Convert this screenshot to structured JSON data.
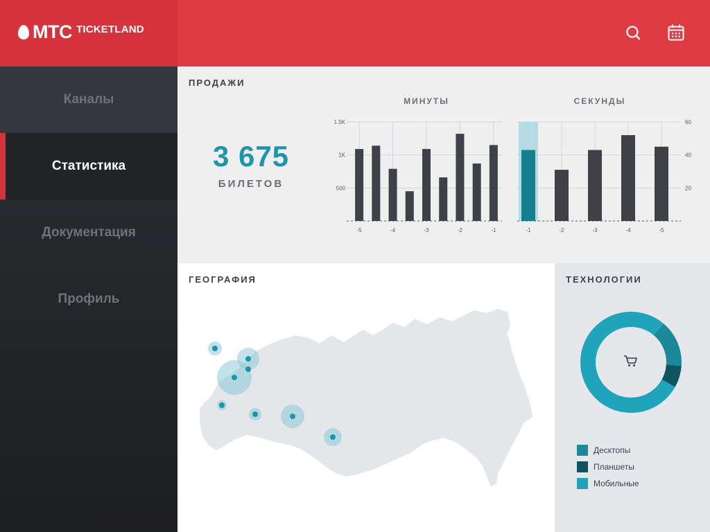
{
  "app": {
    "logo_mts": "МТС",
    "logo_brand": "TICKETLAND"
  },
  "colors": {
    "brand_red": "#d7333c",
    "accent_teal": "#1b97ad",
    "bar_dark": "#3e4148",
    "bar_highlight": "#14808f"
  },
  "sidebar": {
    "items": [
      {
        "label": "Каналы",
        "active": false
      },
      {
        "label": "Статистика",
        "active": true
      },
      {
        "label": "Документация",
        "active": false
      },
      {
        "label": "Профиль",
        "active": false
      }
    ]
  },
  "header": {
    "icons": [
      "search-icon",
      "calendar-icon"
    ]
  },
  "sales": {
    "title": "ПРОДАЖИ",
    "tickets_value": "3 675",
    "tickets_label": "БИЛЕТОВ"
  },
  "geo": {
    "title": "ГЕОГРАФИЯ",
    "markers": [
      {
        "x": 0.0,
        "y": 0.0
      },
      {
        "x": 0.0,
        "y": 0.0
      }
    ]
  },
  "tech": {
    "title": "ТЕХНОЛОГИИ",
    "center_icon": "cart-icon",
    "legend": [
      {
        "label": "Десктопы",
        "color": "#1a8a9b"
      },
      {
        "label": "Планшеты",
        "color": "#0f5461"
      },
      {
        "label": "Мобильные",
        "color": "#1ea4bb"
      }
    ]
  },
  "chart_data": [
    {
      "type": "bar",
      "title": "МИНУТЫ",
      "categories": [
        "-5",
        "",
        "-4",
        "",
        "-3",
        "",
        "-2",
        "",
        "-1"
      ],
      "values": [
        1090,
        1140,
        790,
        450,
        1090,
        660,
        1320,
        870,
        1150
      ],
      "ylim": [
        0,
        1500
      ],
      "yticks": [
        {
          "v": 500,
          "label": "500"
        },
        {
          "v": 1000,
          "label": "1K"
        },
        {
          "v": 1500,
          "label": "1.5K"
        }
      ],
      "grid": true
    },
    {
      "type": "bar",
      "title": "СЕКУНДЫ",
      "categories": [
        "-1",
        "-2",
        "-3",
        "-4",
        "-5"
      ],
      "values": [
        43,
        31,
        43,
        52,
        45
      ],
      "highlight_index": 0,
      "ylim": [
        0,
        60
      ],
      "yticks": [
        {
          "v": 20,
          "label": "20"
        },
        {
          "v": 40,
          "label": "40"
        },
        {
          "v": 60,
          "label": "60"
        }
      ],
      "grid": true
    },
    {
      "type": "pie",
      "title": "",
      "series": [
        {
          "name": "Мобильные",
          "value": 78
        },
        {
          "name": "Десктопы",
          "value": 15
        },
        {
          "name": "Планшеты",
          "value": 7
        }
      ]
    }
  ]
}
